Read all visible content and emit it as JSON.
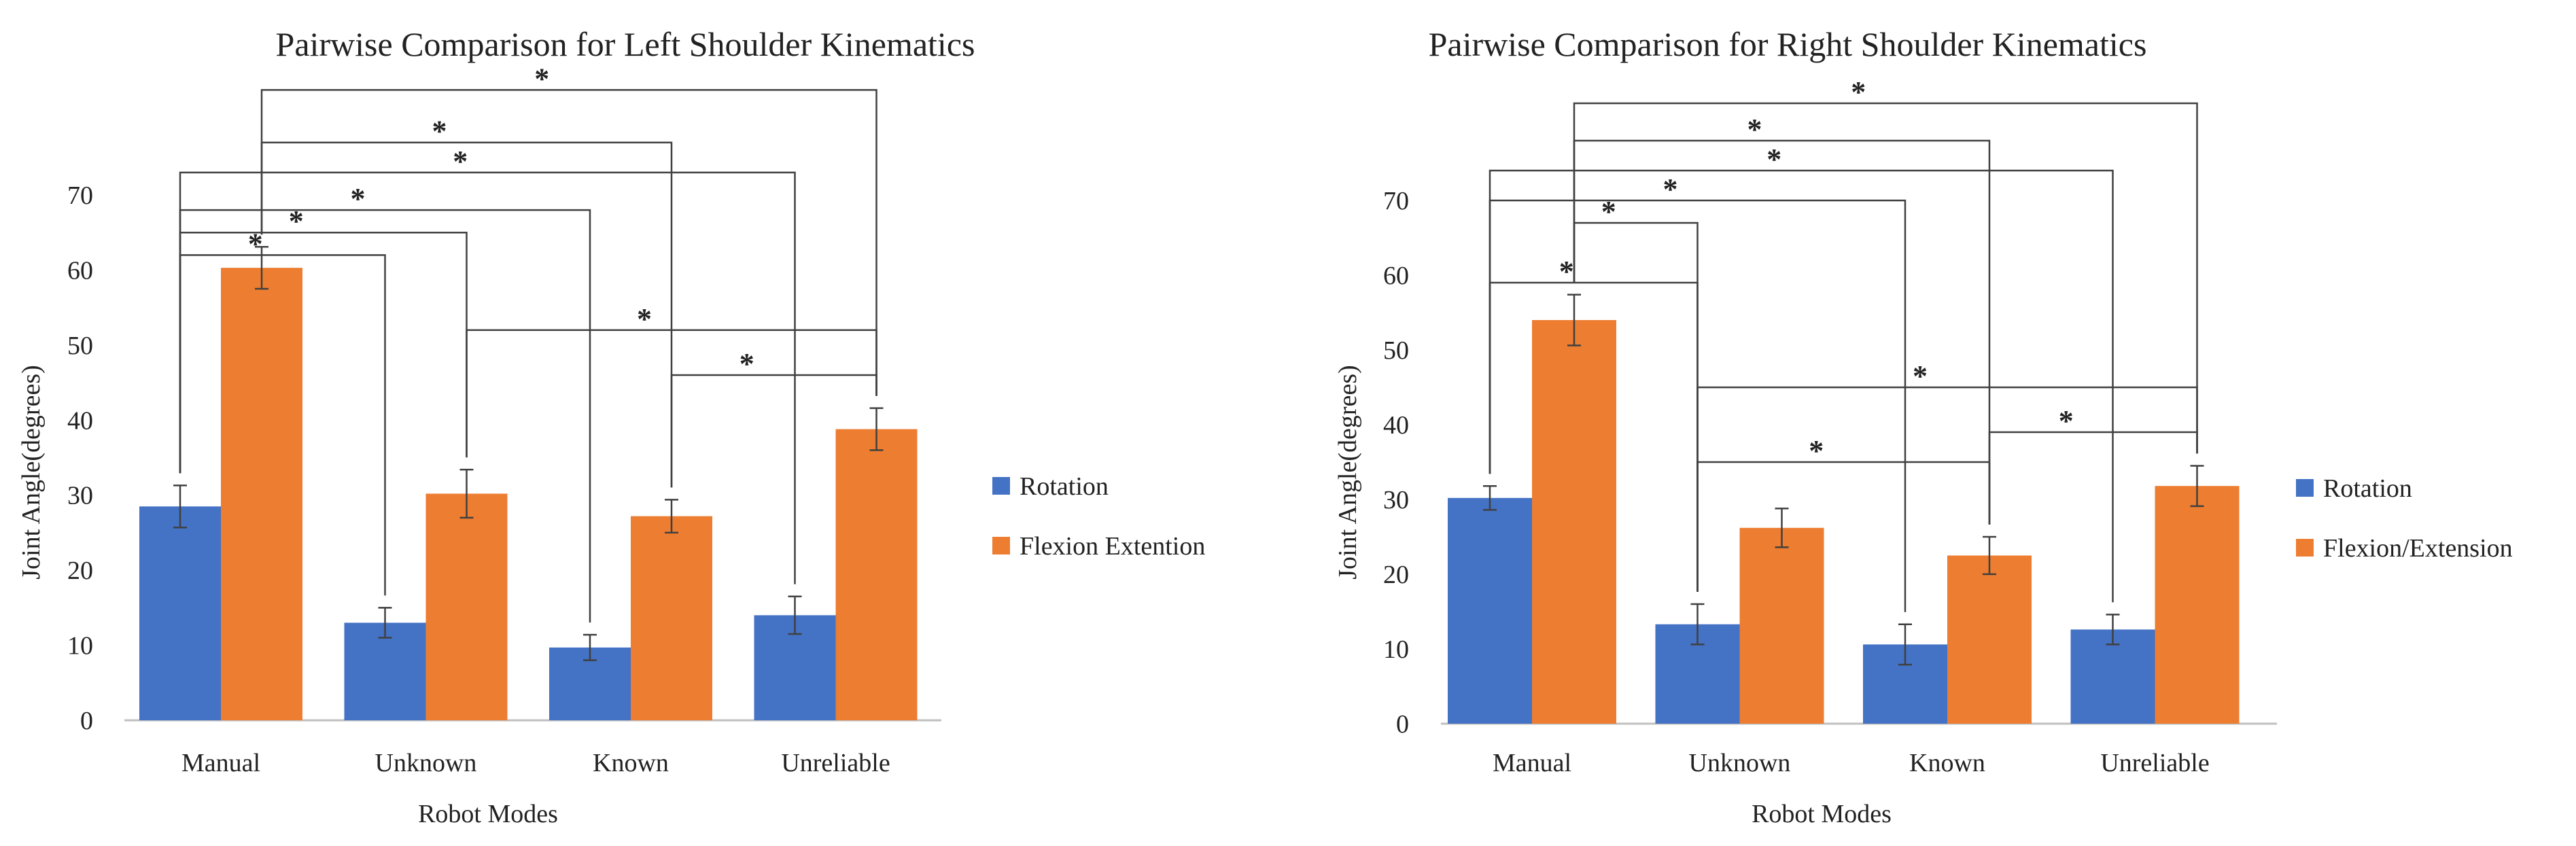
{
  "colors": {
    "rotation": "#4472C4",
    "flexion": "#ED7D31",
    "axis": "#BFBFBF",
    "bracket": "#404040",
    "errorbar": "#404040"
  },
  "chart_data": [
    {
      "type": "bar",
      "title": "Pairwise Comparison for Left Shoulder Kinematics",
      "xlabel": "Robot Modes",
      "ylabel": "Joint Angle(degrees)",
      "ylim": [
        0,
        70
      ],
      "yticks": [
        "0",
        "10",
        "20",
        "30",
        "40",
        "50",
        "60",
        "70"
      ],
      "categories": [
        "Manual",
        "Unknown",
        "Known",
        "Unreliable"
      ],
      "series": [
        {
          "name": "Rotation",
          "values": [
            28.5,
            13,
            9.7,
            14
          ],
          "errors": [
            2.8,
            2,
            1.7,
            2.5
          ]
        },
        {
          "name": "Flexion Extention",
          "values": [
            60.3,
            30.2,
            27.2,
            38.8
          ],
          "errors": [
            2.8,
            3.2,
            2.2,
            2.8
          ]
        }
      ],
      "legend": [
        "Rotation",
        "Flexion Extention"
      ],
      "legend_position": "right",
      "comparisons": [
        {
          "from": [
            0,
            1
          ],
          "to": [
            3,
            1
          ],
          "level": 84,
          "label": "*"
        },
        {
          "from": [
            0,
            1
          ],
          "to": [
            2,
            1
          ],
          "level": 77,
          "label": "*"
        },
        {
          "from": [
            0,
            0
          ],
          "to": [
            3,
            0
          ],
          "level": 73,
          "label": "*"
        },
        {
          "from": [
            0,
            0
          ],
          "to": [
            2,
            0
          ],
          "level": 68,
          "label": "*"
        },
        {
          "from": [
            0,
            0
          ],
          "to": [
            1,
            1
          ],
          "level": 65,
          "label": "*"
        },
        {
          "from": [
            0,
            0
          ],
          "to": [
            1,
            0
          ],
          "level": 62,
          "label": "*"
        },
        {
          "from": [
            1,
            1
          ],
          "to": [
            3,
            1
          ],
          "level": 52,
          "label": "*"
        },
        {
          "from": [
            2,
            1
          ],
          "to": [
            3,
            1
          ],
          "level": 46,
          "label": "*"
        }
      ]
    },
    {
      "type": "bar",
      "title": "Pairwise Comparison for Right Shoulder Kinematics",
      "xlabel": "Robot Modes",
      "ylabel": "Joint Angle(degrees)",
      "ylim": [
        0,
        70
      ],
      "yticks": [
        "0",
        "10",
        "20",
        "30",
        "40",
        "50",
        "60",
        "70"
      ],
      "categories": [
        "Manual",
        "Unknown",
        "Known",
        "Unreliable"
      ],
      "series": [
        {
          "name": "Rotation",
          "values": [
            30.2,
            13.3,
            10.6,
            12.6
          ],
          "errors": [
            1.6,
            2.7,
            2.7,
            2.0
          ]
        },
        {
          "name": "Flexion/Extension",
          "values": [
            54,
            26.2,
            22.5,
            31.8
          ],
          "errors": [
            3.4,
            2.6,
            2.5,
            2.7
          ]
        }
      ],
      "legend": [
        "Rotation",
        "Flexion/Extension"
      ],
      "legend_position": "right",
      "comparisons": [
        {
          "from": [
            0,
            1
          ],
          "to": [
            3,
            1
          ],
          "level": 83,
          "label": "*"
        },
        {
          "from": [
            0,
            1
          ],
          "to": [
            2,
            1
          ],
          "level": 78,
          "label": "*"
        },
        {
          "from": [
            0,
            0
          ],
          "to": [
            3,
            0
          ],
          "level": 74,
          "label": "*"
        },
        {
          "from": [
            0,
            0
          ],
          "to": [
            2,
            0
          ],
          "level": 70,
          "label": "*"
        },
        {
          "from": [
            0,
            1
          ],
          "to": [
            1,
            0
          ],
          "level": 67,
          "label": "*"
        },
        {
          "from": [
            0,
            0
          ],
          "to": [
            1,
            0
          ],
          "level": 59,
          "label": "*"
        },
        {
          "from": [
            1,
            0
          ],
          "to": [
            3,
            1
          ],
          "level": 45,
          "label": "*"
        },
        {
          "from": [
            1,
            0
          ],
          "to": [
            2,
            1
          ],
          "level": 35,
          "label": "*"
        },
        {
          "from": [
            2,
            1
          ],
          "to": [
            3,
            1
          ],
          "level": 39,
          "label": "*"
        }
      ]
    }
  ]
}
